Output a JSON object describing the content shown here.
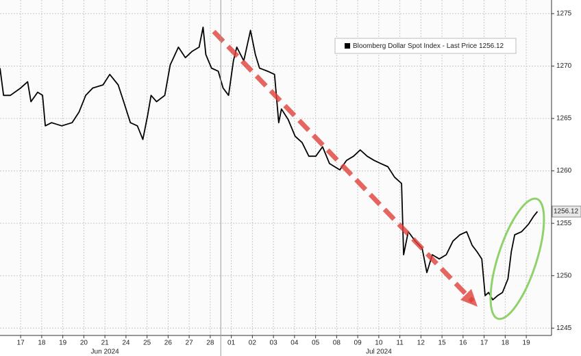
{
  "chart_data": {
    "type": "line",
    "series": [
      {
        "name": "Bloomberg Dollar Spot Index - Last Price 1256.12",
        "color": "#000000",
        "x": [
          -0.98,
          -0.81,
          -0.49,
          0,
          0.33,
          0.49,
          0.81,
          1.04,
          1.17,
          1.47,
          1.95,
          2.44,
          2.77,
          3.09,
          3.42,
          3.91,
          4.23,
          4.63,
          4.89,
          5.21,
          5.54,
          5.8,
          6.03,
          6.19,
          6.45,
          6.84,
          7.1,
          7.49,
          7.82,
          8.14,
          8.47,
          8.66,
          8.79,
          9.06,
          9.38,
          9.61,
          9.87,
          10.1,
          10.26,
          10.59,
          10.91,
          11.14,
          11.34,
          11.73,
          12.05,
          12.25,
          12.38,
          12.7,
          13.03,
          13.36,
          13.68,
          14.01,
          14.33,
          14.66,
          15.15,
          15.47,
          15.8,
          16.12,
          16.45,
          16.78,
          17.1,
          17.43,
          17.75,
          18.08,
          18.18,
          18.4,
          18.73,
          19.06,
          19.28,
          19.54,
          19.87,
          20.2,
          20.52,
          20.85,
          21.17,
          21.43,
          21.66,
          21.89,
          22.05,
          22.21,
          22.41,
          22.64,
          22.87,
          23.13,
          23.29,
          23.45,
          23.78,
          24.1,
          24.36,
          24.53
        ],
        "values": [
          1269.8,
          1267.2,
          1267.2,
          1267.9,
          1268.5,
          1266.6,
          1267.5,
          1267.2,
          1264.3,
          1264.6,
          1264.3,
          1264.6,
          1265.6,
          1267.2,
          1267.9,
          1268.2,
          1269.2,
          1268.2,
          1266.6,
          1264.6,
          1264.3,
          1263.0,
          1265.3,
          1267.2,
          1266.6,
          1267.2,
          1270.1,
          1271.8,
          1270.8,
          1271.4,
          1271.8,
          1273.7,
          1271.1,
          1269.8,
          1269.5,
          1267.9,
          1267.2,
          1270.5,
          1271.8,
          1270.5,
          1273.4,
          1271.1,
          1269.8,
          1269.5,
          1269.2,
          1264.6,
          1265.9,
          1264.9,
          1263.3,
          1262.7,
          1261.4,
          1261.4,
          1262.3,
          1260.7,
          1260.1,
          1261.0,
          1261.4,
          1262.0,
          1261.4,
          1261.0,
          1260.7,
          1260.4,
          1259.4,
          1258.8,
          1252.0,
          1254.2,
          1253.3,
          1252.6,
          1250.3,
          1252.0,
          1251.6,
          1252.0,
          1253.3,
          1253.9,
          1254.2,
          1252.9,
          1252.3,
          1251.6,
          1248.1,
          1248.4,
          1247.7,
          1248.1,
          1248.4,
          1249.7,
          1252.3,
          1253.9,
          1254.2,
          1254.9,
          1255.7,
          1256.12
        ]
      }
    ],
    "xlim": [
      -0.98,
      25.2
    ],
    "xticks": [
      {
        "value": 0,
        "label": "17"
      },
      {
        "value": 1,
        "label": "18"
      },
      {
        "value": 2,
        "label": "19"
      },
      {
        "value": 3,
        "label": "20"
      },
      {
        "value": 4,
        "label": "21"
      },
      {
        "value": 5,
        "label": "24"
      },
      {
        "value": 6,
        "label": "25"
      },
      {
        "value": 7,
        "label": "26"
      },
      {
        "value": 8,
        "label": "27"
      },
      {
        "value": 9,
        "label": "28"
      },
      {
        "value": 10,
        "label": "01"
      },
      {
        "value": 11,
        "label": "02"
      },
      {
        "value": 12,
        "label": "03"
      },
      {
        "value": 13,
        "label": "04"
      },
      {
        "value": 14,
        "label": "05"
      },
      {
        "value": 15,
        "label": "08"
      },
      {
        "value": 16,
        "label": "09"
      },
      {
        "value": 17,
        "label": "10"
      },
      {
        "value": 18,
        "label": "11"
      },
      {
        "value": 19,
        "label": "12"
      },
      {
        "value": 20,
        "label": "15"
      },
      {
        "value": 21,
        "label": "16"
      },
      {
        "value": 22,
        "label": "17"
      },
      {
        "value": 23,
        "label": "18"
      },
      {
        "value": 24,
        "label": "19"
      }
    ],
    "month_labels": [
      {
        "value": 4,
        "label": "Jun 2024"
      },
      {
        "value": 17,
        "label": "Jul 2024"
      }
    ],
    "ylim": [
      1244.3,
      1276.3
    ],
    "yticks": [
      1245,
      1250,
      1255,
      1260,
      1265,
      1270,
      1275
    ],
    "grid": true,
    "legend": "upper right",
    "annotations": [
      {
        "text": "1256.12",
        "y": 1256.12
      }
    ]
  }
}
